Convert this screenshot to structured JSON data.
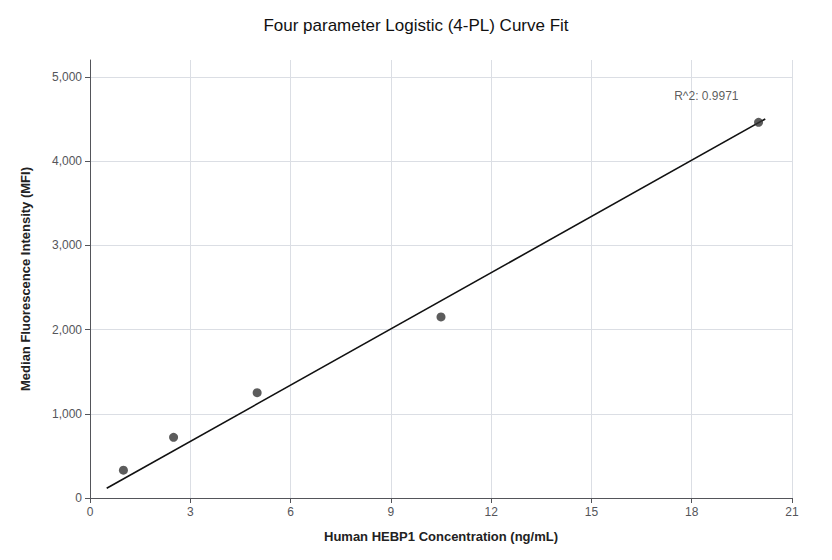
{
  "chart_data": {
    "type": "scatter",
    "title": "Four parameter Logistic (4-PL) Curve Fit",
    "xlabel": "Human HEBP1 Concentration (ng/mL)",
    "ylabel": "Median Fluorescence Intensity (MFI)",
    "series": [
      {
        "type": "line",
        "color": "#111111",
        "x": [
          0.5,
          20.2
        ],
        "values": [
          115,
          4500
        ]
      },
      {
        "type": "scatter",
        "color": "#333333",
        "x": [
          1.0,
          2.5,
          5.0,
          10.5,
          20.0
        ],
        "values": [
          330,
          720,
          1250,
          2150,
          4460
        ]
      }
    ],
    "xlim": [
      0,
      21
    ],
    "ylim": [
      0,
      5200
    ],
    "xticks": [
      0,
      3,
      6,
      9,
      12,
      15,
      18,
      21
    ],
    "yticks": [
      0,
      {
        "value": 1000,
        "label": "1,000"
      },
      {
        "value": 2000,
        "label": "2,000"
      },
      {
        "value": 3000,
        "label": "3,000"
      },
      {
        "value": 4000,
        "label": "4,000"
      },
      {
        "value": 5000,
        "label": "5,000"
      }
    ],
    "grid": true,
    "annotations": [
      {
        "text": "R^2: 0.9971",
        "x": 19.4,
        "y": 4700
      }
    ]
  }
}
